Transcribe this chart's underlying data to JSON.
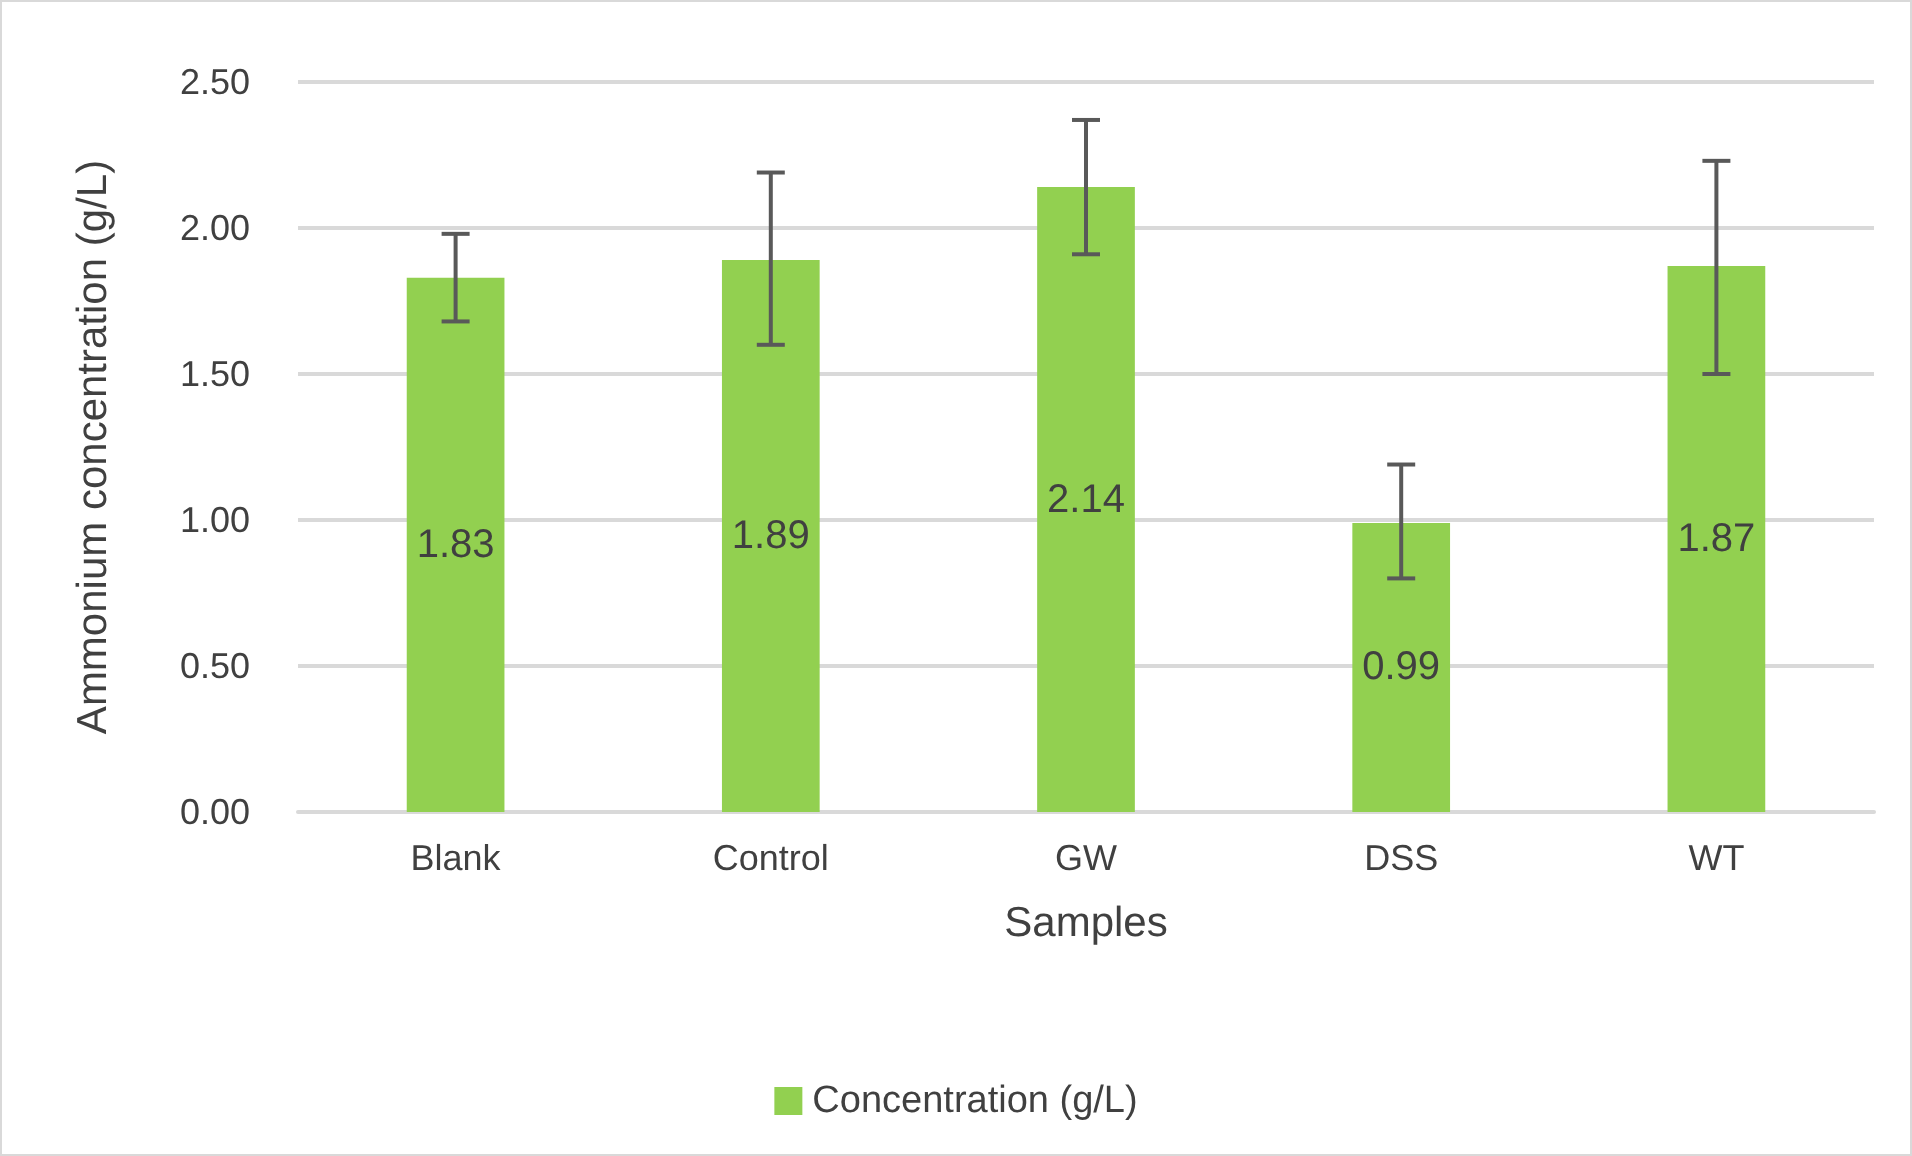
{
  "chart_data": {
    "type": "bar",
    "xlabel": "Samples",
    "ylabel": "Ammonium concentration (g/L)",
    "categories": [
      "Blank",
      "Control",
      "GW",
      "DSS",
      "WT"
    ],
    "series": [
      {
        "name": "Concentration (g/L)",
        "color": "#92d050",
        "values": [
          1.83,
          1.89,
          2.14,
          0.99,
          1.87
        ],
        "errors": [
          [
            1.68,
            1.98
          ],
          [
            1.6,
            2.19
          ],
          [
            1.91,
            2.37
          ],
          [
            0.8,
            1.19
          ],
          [
            1.5,
            2.23
          ]
        ]
      }
    ],
    "ylim": [
      0,
      2.5
    ],
    "yticks": [
      {
        "value": 0,
        "label": "0.00"
      },
      {
        "value": 0.5,
        "label": "0.50"
      },
      {
        "value": 1,
        "label": "1.00"
      },
      {
        "value": 1.5,
        "label": "1.50"
      },
      {
        "value": 2,
        "label": "2.00"
      },
      {
        "value": 2.5,
        "label": "2.50"
      }
    ],
    "grid": "y",
    "legend": "bottom",
    "data_labels": true
  }
}
